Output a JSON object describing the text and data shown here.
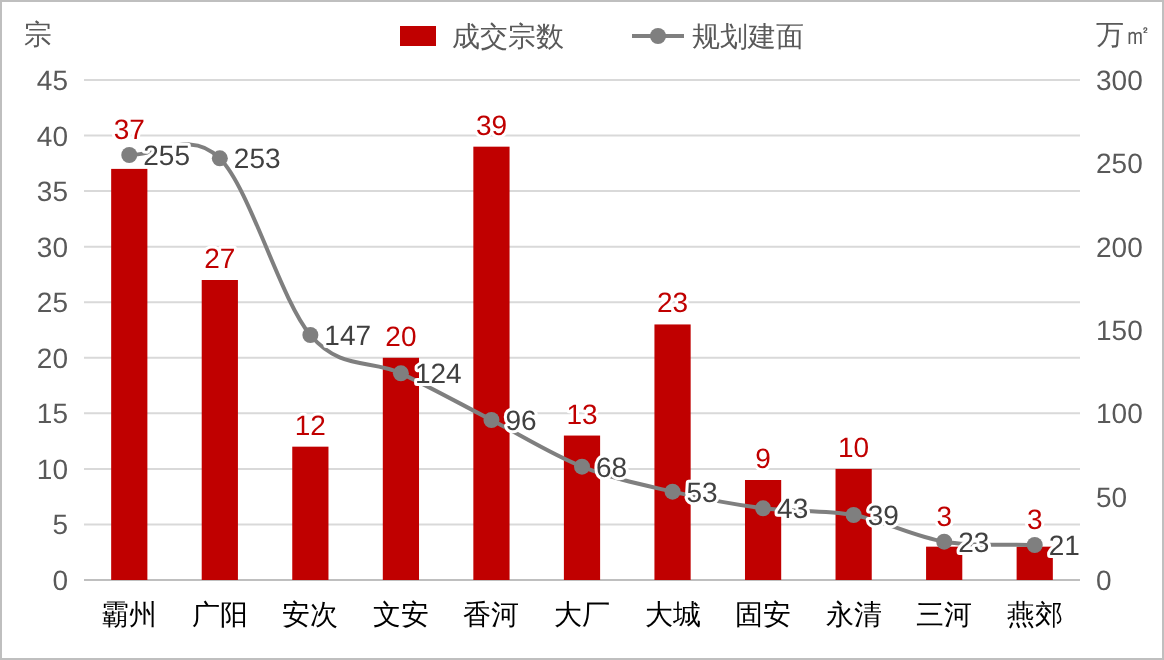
{
  "chart_data": {
    "type": "bar",
    "ylabel": "宗",
    "y2label": "万㎡",
    "categories": [
      "霸州",
      "广阳",
      "安次",
      "文安",
      "香河",
      "大厂",
      "大城",
      "固安",
      "永清",
      "三河",
      "燕郊"
    ],
    "series": [
      {
        "name": "成交宗数",
        "color": "#c00000",
        "values": [
          37,
          27,
          12,
          20,
          39,
          13,
          23,
          9,
          10,
          3,
          3
        ]
      },
      {
        "name": "规划建面",
        "type": "line",
        "axis": "y2",
        "color": "#7f7f7f",
        "values": [
          255,
          253,
          147,
          124,
          96,
          68,
          53,
          43,
          39,
          23,
          21
        ]
      }
    ],
    "ylim": [
      0,
      45
    ],
    "yticks": [
      0,
      5,
      10,
      15,
      20,
      25,
      30,
      35,
      40,
      45
    ],
    "y2lim": [
      0,
      300
    ],
    "y2ticks": [
      0,
      50,
      100,
      150,
      200,
      250,
      300
    ],
    "grid": "y",
    "legend": "top",
    "marker": "circle",
    "data_labels": true
  }
}
